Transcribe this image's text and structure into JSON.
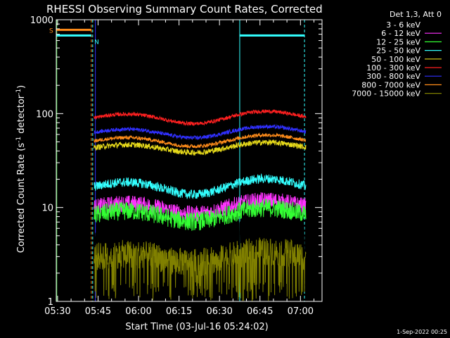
{
  "chart_data": {
    "type": "line",
    "title": "RHESSI Observing Summary Count Rates, Corrected",
    "xlabel": "Start Time (03-Jul-16 05:24:02)",
    "ylabel": "Corrected Count Rate (s",
    "ylabel_sup1": "-1",
    "ylabel_mid": " detector",
    "ylabel_sup2": "-1",
    "ylabel_end": ")",
    "yscale": "log",
    "ylim": [
      1,
      1000
    ],
    "xlim_minutes": [
      -0.5,
      98
    ],
    "x_ticks": [
      {
        "label": "05:30",
        "minute": 0
      },
      {
        "label": "05:45",
        "minute": 15
      },
      {
        "label": "06:00",
        "minute": 30
      },
      {
        "label": "06:15",
        "minute": 45
      },
      {
        "label": "06:30",
        "minute": 60
      },
      {
        "label": "06:45",
        "minute": 75
      },
      {
        "label": "07:00",
        "minute": 90
      }
    ],
    "y_ticks": [
      {
        "label": "1",
        "value": 1
      },
      {
        "label": "10",
        "value": 10
      },
      {
        "label": "100",
        "value": 100
      },
      {
        "label": "1000",
        "value": 1000
      }
    ],
    "legend_header": "Det 1,3, Att 0",
    "legend_placement": "top-right outside",
    "timestamp": "1-Sep-2022 00:25",
    "flags": [
      {
        "label": "S",
        "color": "#ff8c1a",
        "value": 780
      },
      {
        "label": "N",
        "color": "#33ffff",
        "value": 680
      }
    ],
    "series": [
      {
        "name": "3 - 6 keV",
        "color": "#000000",
        "start": 13.5,
        "end": 92,
        "base": 0,
        "amp": 0,
        "noise": 0
      },
      {
        "name": "6 - 12 keV",
        "color": "#ff33ff",
        "start": 13.5,
        "end": 92,
        "base": 10.2,
        "amp": 0.12,
        "noise": 0.09
      },
      {
        "name": "12 - 25 keV",
        "color": "#33ff33",
        "start": 13.5,
        "end": 92,
        "base": 8.5,
        "amp": 0.12,
        "noise": 0.1
      },
      {
        "name": "25 - 50 keV",
        "color": "#33ffff",
        "start": 13.5,
        "end": 92,
        "base": 17,
        "amp": 0.14,
        "noise": 0.05
      },
      {
        "name": "50 - 100 keV",
        "color": "#e6d91a",
        "start": 13.5,
        "end": 92,
        "base": 44,
        "amp": 0.09,
        "noise": 0.03
      },
      {
        "name": "100 - 300 keV",
        "color": "#ff2020",
        "start": 13.5,
        "end": 92,
        "base": 92,
        "amp": 0.11,
        "noise": 0.02
      },
      {
        "name": "300 - 800 keV",
        "color": "#3030ff",
        "start": 13.5,
        "end": 92,
        "base": 64,
        "amp": 0.1,
        "noise": 0.02
      },
      {
        "name": "800 - 7000 keV",
        "color": "#ff8c1a",
        "start": 13.5,
        "end": 92,
        "base": 52,
        "amp": 0.1,
        "noise": 0.02
      },
      {
        "name": "7000 - 15000 keV",
        "color": "#808000",
        "start": 13.5,
        "end": 92,
        "base": 3.0,
        "amp": 0.1,
        "noise": 0.15
      }
    ],
    "black_fill_series": {
      "color": "#000000",
      "base": 3.4,
      "noise": 0.17
    },
    "event_lines": [
      {
        "minute": 12.5,
        "color": "#ff8c1a",
        "style": "dashed"
      },
      {
        "minute": 13.0,
        "color": "#33ffff",
        "style": "dashed"
      },
      {
        "minute": 14.0,
        "color": "#3030ff",
        "style": "solid"
      },
      {
        "minute": 67.5,
        "color": "#33ffff",
        "style": "solid"
      },
      {
        "minute": 91.5,
        "color": "#33ffff",
        "style": "dashed"
      },
      {
        "minute": -0.3,
        "color": "#33cc33",
        "style": "solid"
      }
    ]
  }
}
